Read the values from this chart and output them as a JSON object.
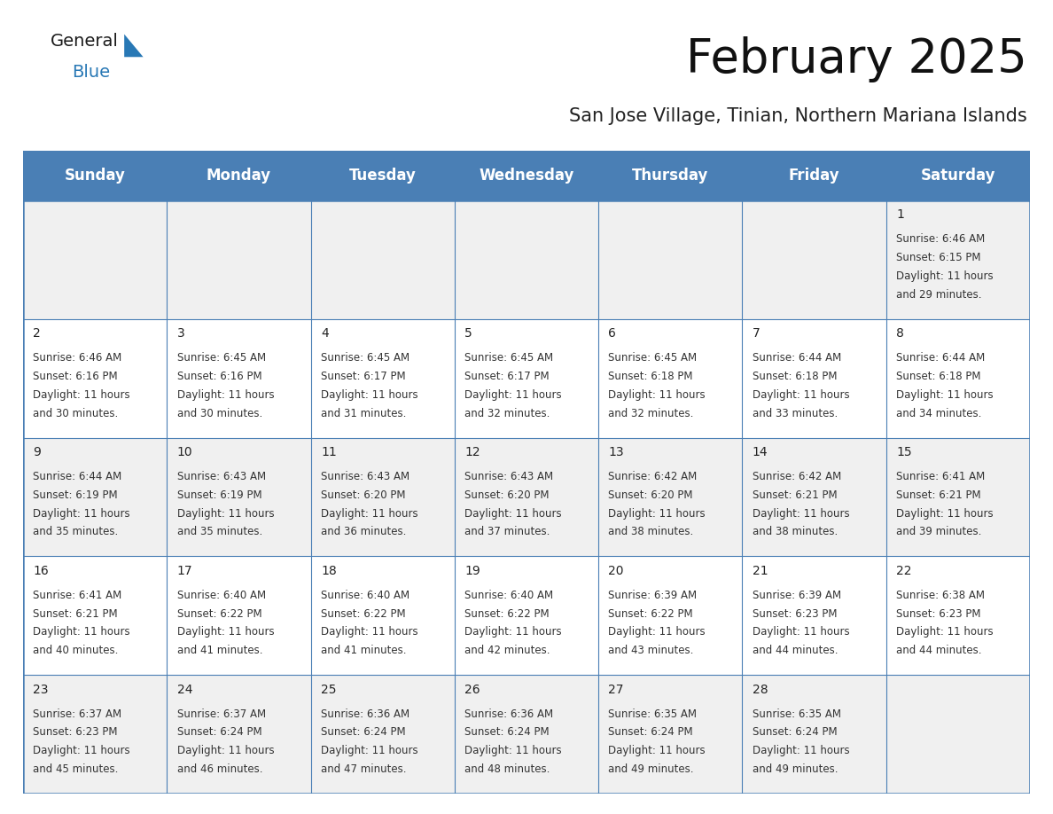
{
  "title": "February 2025",
  "subtitle": "San Jose Village, Tinian, Northern Mariana Islands",
  "header_color": "#4a7fb5",
  "header_text_color": "#ffffff",
  "background_color": "#ffffff",
  "alt_row_color": "#f0f0f0",
  "border_color": "#4a7fb5",
  "day_headers": [
    "Sunday",
    "Monday",
    "Tuesday",
    "Wednesday",
    "Thursday",
    "Friday",
    "Saturday"
  ],
  "title_fontsize": 38,
  "subtitle_fontsize": 15,
  "header_fontsize": 12,
  "cell_day_fontsize": 10,
  "cell_fontsize": 8.5,
  "days": [
    {
      "day": 1,
      "col": 6,
      "row": 0,
      "sunrise": "6:46 AM",
      "sunset": "6:15 PM",
      "daylight": "11 hours",
      "daylight2": "and 29 minutes."
    },
    {
      "day": 2,
      "col": 0,
      "row": 1,
      "sunrise": "6:46 AM",
      "sunset": "6:16 PM",
      "daylight": "11 hours",
      "daylight2": "and 30 minutes."
    },
    {
      "day": 3,
      "col": 1,
      "row": 1,
      "sunrise": "6:45 AM",
      "sunset": "6:16 PM",
      "daylight": "11 hours",
      "daylight2": "and 30 minutes."
    },
    {
      "day": 4,
      "col": 2,
      "row": 1,
      "sunrise": "6:45 AM",
      "sunset": "6:17 PM",
      "daylight": "11 hours",
      "daylight2": "and 31 minutes."
    },
    {
      "day": 5,
      "col": 3,
      "row": 1,
      "sunrise": "6:45 AM",
      "sunset": "6:17 PM",
      "daylight": "11 hours",
      "daylight2": "and 32 minutes."
    },
    {
      "day": 6,
      "col": 4,
      "row": 1,
      "sunrise": "6:45 AM",
      "sunset": "6:18 PM",
      "daylight": "11 hours",
      "daylight2": "and 32 minutes."
    },
    {
      "day": 7,
      "col": 5,
      "row": 1,
      "sunrise": "6:44 AM",
      "sunset": "6:18 PM",
      "daylight": "11 hours",
      "daylight2": "and 33 minutes."
    },
    {
      "day": 8,
      "col": 6,
      "row": 1,
      "sunrise": "6:44 AM",
      "sunset": "6:18 PM",
      "daylight": "11 hours",
      "daylight2": "and 34 minutes."
    },
    {
      "day": 9,
      "col": 0,
      "row": 2,
      "sunrise": "6:44 AM",
      "sunset": "6:19 PM",
      "daylight": "11 hours",
      "daylight2": "and 35 minutes."
    },
    {
      "day": 10,
      "col": 1,
      "row": 2,
      "sunrise": "6:43 AM",
      "sunset": "6:19 PM",
      "daylight": "11 hours",
      "daylight2": "and 35 minutes."
    },
    {
      "day": 11,
      "col": 2,
      "row": 2,
      "sunrise": "6:43 AM",
      "sunset": "6:20 PM",
      "daylight": "11 hours",
      "daylight2": "and 36 minutes."
    },
    {
      "day": 12,
      "col": 3,
      "row": 2,
      "sunrise": "6:43 AM",
      "sunset": "6:20 PM",
      "daylight": "11 hours",
      "daylight2": "and 37 minutes."
    },
    {
      "day": 13,
      "col": 4,
      "row": 2,
      "sunrise": "6:42 AM",
      "sunset": "6:20 PM",
      "daylight": "11 hours",
      "daylight2": "and 38 minutes."
    },
    {
      "day": 14,
      "col": 5,
      "row": 2,
      "sunrise": "6:42 AM",
      "sunset": "6:21 PM",
      "daylight": "11 hours",
      "daylight2": "and 38 minutes."
    },
    {
      "day": 15,
      "col": 6,
      "row": 2,
      "sunrise": "6:41 AM",
      "sunset": "6:21 PM",
      "daylight": "11 hours",
      "daylight2": "and 39 minutes."
    },
    {
      "day": 16,
      "col": 0,
      "row": 3,
      "sunrise": "6:41 AM",
      "sunset": "6:21 PM",
      "daylight": "11 hours",
      "daylight2": "and 40 minutes."
    },
    {
      "day": 17,
      "col": 1,
      "row": 3,
      "sunrise": "6:40 AM",
      "sunset": "6:22 PM",
      "daylight": "11 hours",
      "daylight2": "and 41 minutes."
    },
    {
      "day": 18,
      "col": 2,
      "row": 3,
      "sunrise": "6:40 AM",
      "sunset": "6:22 PM",
      "daylight": "11 hours",
      "daylight2": "and 41 minutes."
    },
    {
      "day": 19,
      "col": 3,
      "row": 3,
      "sunrise": "6:40 AM",
      "sunset": "6:22 PM",
      "daylight": "11 hours",
      "daylight2": "and 42 minutes."
    },
    {
      "day": 20,
      "col": 4,
      "row": 3,
      "sunrise": "6:39 AM",
      "sunset": "6:22 PM",
      "daylight": "11 hours",
      "daylight2": "and 43 minutes."
    },
    {
      "day": 21,
      "col": 5,
      "row": 3,
      "sunrise": "6:39 AM",
      "sunset": "6:23 PM",
      "daylight": "11 hours",
      "daylight2": "and 44 minutes."
    },
    {
      "day": 22,
      "col": 6,
      "row": 3,
      "sunrise": "6:38 AM",
      "sunset": "6:23 PM",
      "daylight": "11 hours",
      "daylight2": "and 44 minutes."
    },
    {
      "day": 23,
      "col": 0,
      "row": 4,
      "sunrise": "6:37 AM",
      "sunset": "6:23 PM",
      "daylight": "11 hours",
      "daylight2": "and 45 minutes."
    },
    {
      "day": 24,
      "col": 1,
      "row": 4,
      "sunrise": "6:37 AM",
      "sunset": "6:24 PM",
      "daylight": "11 hours",
      "daylight2": "and 46 minutes."
    },
    {
      "day": 25,
      "col": 2,
      "row": 4,
      "sunrise": "6:36 AM",
      "sunset": "6:24 PM",
      "daylight": "11 hours",
      "daylight2": "and 47 minutes."
    },
    {
      "day": 26,
      "col": 3,
      "row": 4,
      "sunrise": "6:36 AM",
      "sunset": "6:24 PM",
      "daylight": "11 hours",
      "daylight2": "and 48 minutes."
    },
    {
      "day": 27,
      "col": 4,
      "row": 4,
      "sunrise": "6:35 AM",
      "sunset": "6:24 PM",
      "daylight": "11 hours",
      "daylight2": "and 49 minutes."
    },
    {
      "day": 28,
      "col": 5,
      "row": 4,
      "sunrise": "6:35 AM",
      "sunset": "6:24 PM",
      "daylight": "11 hours",
      "daylight2": "and 49 minutes."
    }
  ]
}
